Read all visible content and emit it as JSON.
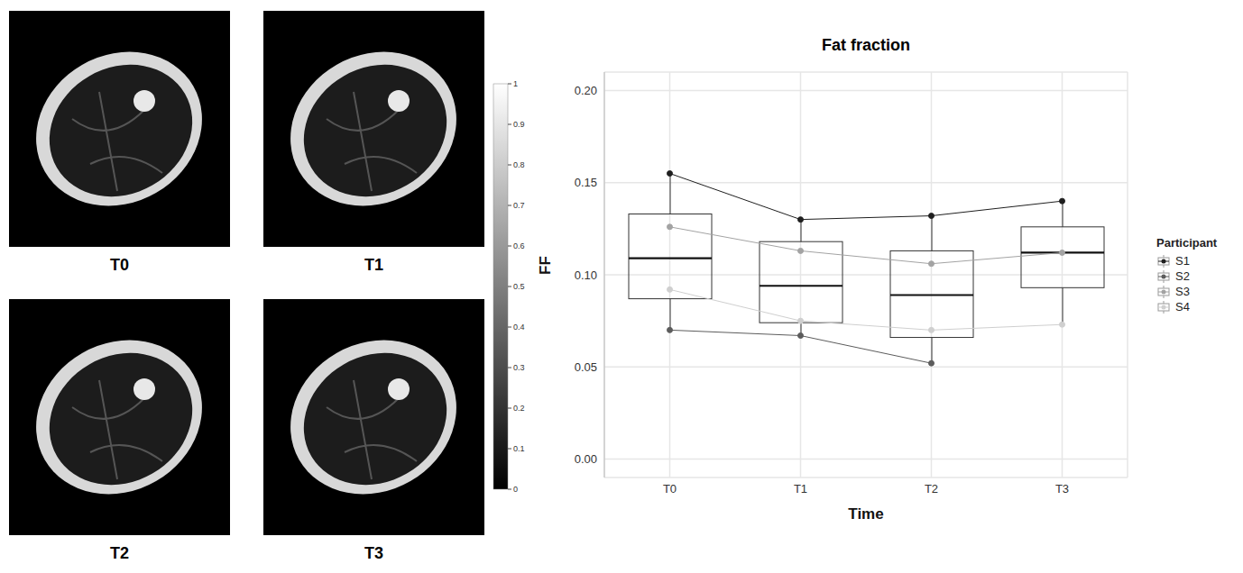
{
  "images": {
    "labels": [
      "T0",
      "T1",
      "T2",
      "T3"
    ],
    "colorbar": {
      "range": [
        0,
        1
      ],
      "ticks": [
        0,
        0.1,
        0.2,
        0.3,
        0.4,
        0.5,
        0.6,
        0.7,
        0.8,
        0.9,
        1
      ]
    }
  },
  "chart_data": {
    "type": "box",
    "title": "Fat fraction",
    "x_label": "Time",
    "y_label": "FF",
    "categories": [
      "T0",
      "T1",
      "T2",
      "T3"
    ],
    "boxes": [
      {
        "min": 0.07,
        "q1": 0.087,
        "median": 0.109,
        "q3": 0.133,
        "max": 0.155
      },
      {
        "min": 0.067,
        "q1": 0.074,
        "median": 0.094,
        "q3": 0.118,
        "max": 0.13
      },
      {
        "min": 0.052,
        "q1": 0.066,
        "median": 0.089,
        "q3": 0.113,
        "max": 0.132
      },
      {
        "min": 0.073,
        "q1": 0.093,
        "median": 0.112,
        "q3": 0.126,
        "max": 0.14
      }
    ],
    "series": [
      {
        "name": "S1",
        "color": "#1f1f1f",
        "marker": "circle",
        "values": [
          0.155,
          0.13,
          0.132,
          0.14
        ]
      },
      {
        "name": "S2",
        "color": "#5c5c5c",
        "marker": "circle",
        "values": [
          0.07,
          0.067,
          0.052,
          null
        ]
      },
      {
        "name": "S3",
        "color": "#a3a3a3",
        "marker": "circle",
        "values": [
          0.126,
          0.113,
          0.106,
          0.112
        ]
      },
      {
        "name": "S4",
        "color": "#cfcfcf",
        "marker": "circle",
        "values": [
          0.092,
          0.075,
          0.07,
          0.073
        ]
      }
    ],
    "legend": "right",
    "legend_title": "Participant",
    "ylim": [
      -0.01,
      0.21
    ],
    "yticks": [
      {
        "value": 0,
        "label": "0.00"
      },
      {
        "value": 0.05,
        "label": "0.05"
      },
      {
        "value": 0.1,
        "label": "0.10"
      },
      {
        "value": 0.15,
        "label": "0.15"
      },
      {
        "value": 0.2,
        "label": "0.20"
      }
    ],
    "grid": true
  }
}
